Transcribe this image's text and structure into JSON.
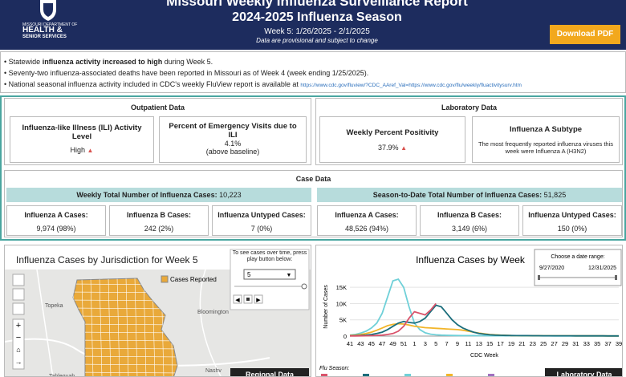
{
  "header": {
    "logo_lines": [
      "MISSOURI DEPARTMENT OF",
      "HEALTH &",
      "SENIOR SERVICES"
    ],
    "title": "Missouri Weekly Influenza Surveillance Report",
    "season": "2024-2025 Influenza Season",
    "week": "Week 5: 1/26/2025 - 2/1/2025",
    "note": "Data are provisional and subject to change",
    "download": "Download PDF"
  },
  "bullets": [
    [
      "Statewide ",
      "influenza activity increased to high",
      " during Week 5."
    ],
    [
      "Seventy-two influenza-associated deaths have been reported in Missouri as of Week 4 (week ending 1/25/2025)."
    ],
    [
      "National seasonal influenza activity included in CDC's weekly FluView report is available at ",
      "https://www.cdc.gov/fluview/?CDC_AAref_Val=https://www.cdc.gov/flu/weekly/fluactivitysurv.htm"
    ]
  ],
  "outpatient": {
    "title": "Outpatient Data",
    "ili_label": "Influenza-like Illness (ILI) Activity Level",
    "ili_value": "High",
    "ed_label": "Percent of Emergency Visits due to ILI",
    "ed_value": "4.1%",
    "ed_note": "(above baseline)"
  },
  "laboratory": {
    "title": "Laboratory Data",
    "positivity_label": "Weekly Percent Positivity",
    "positivity_value": "37.9%",
    "subtype_label": "Influenza A Subtype",
    "subtype_text": "The most frequently reported influenza viruses this week were Influenza A (H3N2)"
  },
  "case_data": {
    "title": "Case Data",
    "weekly_label": "Weekly Total Number of Influenza Cases:",
    "weekly_value": "10,223",
    "season_label": "Season-to-Date Total Number of Influenza Cases:",
    "season_value": "51,825",
    "weekly_cells": [
      [
        "Influenza A Cases:",
        "9,974 (98%)"
      ],
      [
        "Influenza B Cases:",
        "242 (2%)"
      ],
      [
        "Influenza Untyped Cases:",
        "7 (0%)"
      ]
    ],
    "season_cells": [
      [
        "Influenza A Cases:",
        "48,526 (94%)"
      ],
      [
        "Influenza B Cases:",
        "3,149 (6%)"
      ],
      [
        "Influenza Untyped Cases:",
        "150 (0%)"
      ]
    ]
  },
  "map": {
    "title": "Influenza Cases by Jurisdiction for Week 5",
    "legend": "Cases Reported",
    "control_text": "To see cases over time, press play button below:",
    "week_select": "5",
    "places": [
      "Topeka",
      "Bloomington",
      "Nashv",
      "Tahlequah"
    ],
    "button": "Regional Data"
  },
  "chart_data": {
    "type": "line",
    "title": "Influenza Cases by Week",
    "x_label": "CDC Week",
    "y_label": "Number of Cases",
    "date_range_label": "Choose a date range:",
    "date_range": [
      "9/27/2020",
      "12/31/2025"
    ],
    "legend_title": "Flu Season:",
    "button": "Laboratory Data",
    "categories": [
      "41",
      null,
      "43",
      null,
      "45",
      null,
      "47",
      null,
      "49",
      null,
      "51",
      null,
      "1",
      null,
      "3",
      null,
      "5",
      null,
      "7",
      null,
      "9",
      null,
      "11",
      null,
      "13",
      null,
      "15",
      null,
      "17",
      null,
      "19",
      null,
      "21",
      null,
      "23",
      null,
      "25",
      null,
      "27",
      null,
      "29",
      null,
      "31",
      null,
      "33",
      null,
      "35",
      null,
      "37",
      null,
      "39"
    ],
    "ylim": [
      0,
      18000
    ],
    "yticks": [
      0,
      {
        "value": 5000,
        "label": "5K"
      },
      {
        "value": 10000,
        "label": "10K"
      },
      {
        "value": 15000,
        "label": "15K"
      }
    ],
    "grid": true,
    "series": [
      {
        "color": "#6fd0d8",
        "values": [
          300,
          500,
          900,
          1500,
          2500,
          4000,
          7000,
          12000,
          17000,
          17500,
          15000,
          9000,
          4000,
          2000,
          1000,
          600,
          400,
          300,
          250,
          200,
          180,
          160,
          150,
          140,
          130,
          120,
          110,
          100,
          100,
          100,
          90,
          90,
          80,
          80,
          80,
          70,
          70,
          70,
          60,
          60,
          60,
          60,
          50,
          50,
          50,
          50,
          50,
          50,
          50,
          50,
          50
        ]
      },
      {
        "color": "#f2b52a",
        "values": [
          200,
          300,
          500,
          800,
          1200,
          1800,
          2500,
          3200,
          3600,
          3800,
          3700,
          3400,
          3000,
          2800,
          2600,
          2500,
          2400,
          2300,
          2200,
          2100,
          2000,
          1800,
          1500,
          1200,
          900,
          700,
          500,
          400,
          300,
          250,
          180,
          160,
          150,
          140,
          130,
          120,
          110,
          100,
          100,
          100,
          90,
          90,
          80,
          80,
          80,
          70,
          70,
          70,
          60,
          60,
          60
        ]
      },
      {
        "color": "#1b6e7c",
        "values": [
          100,
          150,
          200,
          300,
          500,
          800,
          1200,
          2000,
          3000,
          4000,
          4500,
          4200,
          4000,
          4500,
          5500,
          7500,
          9500,
          9000,
          7000,
          5000,
          3500,
          2500,
          1800,
          1200,
          800,
          600,
          400,
          300,
          250,
          200,
          180,
          160,
          150,
          140,
          130,
          120,
          110,
          100,
          100,
          100,
          90,
          90,
          80,
          80,
          80,
          70,
          70,
          70,
          60,
          60,
          60
        ]
      },
      {
        "color": "#d9536b",
        "values": [
          50,
          60,
          80,
          100,
          150,
          200,
          300,
          500,
          800,
          1500,
          3000,
          5500,
          7500,
          7000,
          6500,
          8000,
          10000,
          null,
          null,
          null,
          null,
          null,
          null,
          null,
          null,
          null,
          null,
          null,
          null,
          null,
          null,
          null,
          null,
          null,
          null,
          null,
          null,
          null,
          null,
          null,
          null,
          null,
          null,
          null,
          null,
          null,
          null,
          null,
          null,
          null,
          null
        ]
      }
    ],
    "legend_colors": [
      "#d9536b",
      "#1b6e7c",
      "#6fd0d8",
      "#f2b52a",
      "#a070c0"
    ]
  }
}
